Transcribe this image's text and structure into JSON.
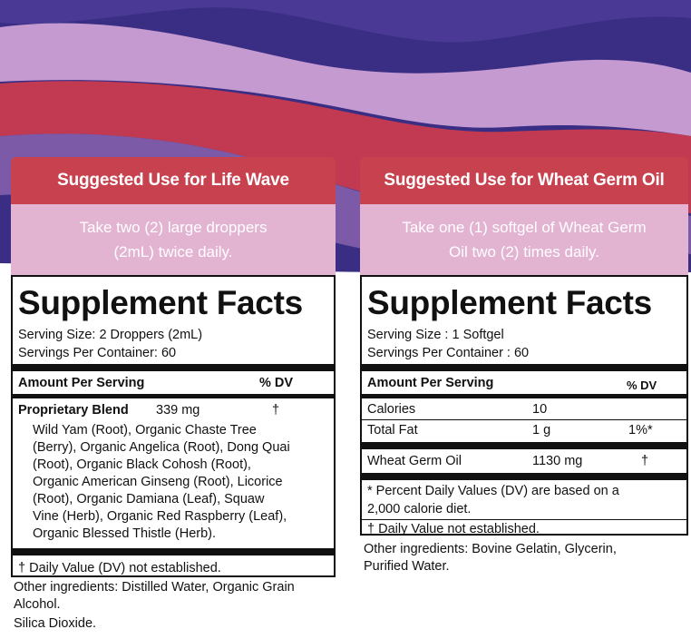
{
  "left": {
    "use_title": "Suggested Use for Life Wave",
    "use_line1": "Take two (2) large droppers",
    "use_line2": "(2mL) twice daily.",
    "facts_title": "Supplement Facts",
    "serving_size": "Serving Size: 2 Droppers (2mL)",
    "servings_per_container": "Servings Per Container: 60",
    "amount_header": "Amount Per Serving",
    "dv_header": "% DV",
    "blend_name": "Proprietary Blend",
    "blend_amount": "339 mg",
    "blend_dv": "†",
    "ingredients": [
      "Wild Yam (Root), Organic Chaste Tree",
      "(Berry), Organic Angelica (Root), Dong Quai",
      "(Root), Organic Black Cohosh (Root),",
      "Organic American Ginseng (Root), Licorice",
      "(Root), Organic Damiana (Leaf), Squaw",
      "Vine (Herb), Organic Red Raspberry (Leaf),",
      "Organic Blessed Thistle (Herb)."
    ],
    "footnote": "† Daily Value (DV) not established.",
    "other_line1": "Other ingredients: Distilled Water, Organic Grain",
    "other_line2": "Alcohol.",
    "other_line3": "Silica Dioxide."
  },
  "right": {
    "use_title": "Suggested Use for Wheat Germ Oil",
    "use_line1": "Take one (1) softgel of Wheat Germ",
    "use_line2": "Oil two (2) times daily.",
    "facts_title": "Supplement Facts",
    "serving_size": "Serving Size : 1 Softgel",
    "servings_per_container": "Servings Per Container : 60",
    "amount_header": "Amount Per Serving",
    "dv_header": "% DV",
    "rows": [
      {
        "name": "Calories",
        "amount": "10",
        "dv": ""
      },
      {
        "name": "Total Fat",
        "amount": "1 g",
        "dv": "1%*"
      },
      {
        "name": "Wheat Germ Oil",
        "amount": "1130 mg",
        "dv": "†"
      }
    ],
    "footnote1_line1": "* Percent Daily Values (DV) are based on a",
    "footnote1_line2": "2,000 calorie diet.",
    "footnote2": "† Daily Value not established.",
    "other_line1": "Other ingredients: Bovine Gelatin, Glycerin,",
    "other_line2": "Purified Water."
  },
  "colors": {
    "header_red": "#c8414f",
    "header_pink": "#e3b3d2",
    "wave_navy": "#3a2e84",
    "wave_purple": "#7d5aa8",
    "wave_lilac": "#c59ad0",
    "wave_red": "#c23a52"
  }
}
